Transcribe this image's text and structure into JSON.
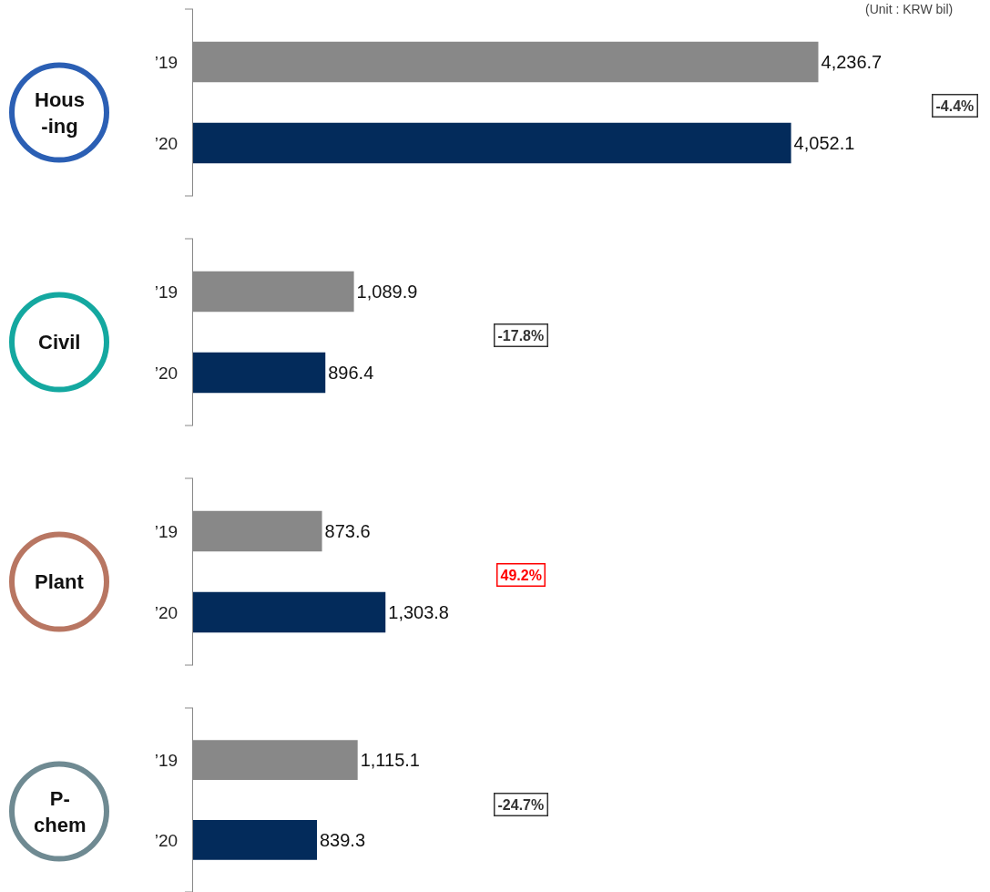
{
  "chart_data": [
    {
      "type": "bar",
      "orientation": "horizontal",
      "title": "Hous\n-ing",
      "categories": [
        "’19",
        "’20"
      ],
      "values": [
        4236.7,
        4052.1
      ],
      "colors": [
        "#888888",
        "#032b5b"
      ],
      "value_labels": [
        "4,236.7",
        "4,052.1"
      ],
      "xlim": [
        0,
        5400
      ],
      "tick_labels": "y",
      "annotations": [
        "(Unit : KRW bil)",
        "-4.4%"
      ]
    },
    {
      "type": "bar",
      "orientation": "horizontal",
      "title": "Civil",
      "categories": [
        "’19",
        "’20"
      ],
      "values": [
        1089.9,
        896.4
      ],
      "colors": [
        "#888888",
        "#032b5b"
      ],
      "value_labels": [
        "1,089.9",
        "896.4"
      ],
      "xlim": [
        0,
        5400
      ],
      "tick_labels": "y",
      "annotations": [
        "-17.8%"
      ]
    },
    {
      "type": "bar",
      "orientation": "horizontal",
      "title": "Plant",
      "categories": [
        "’19",
        "’20"
      ],
      "values": [
        873.6,
        1303.8
      ],
      "colors": [
        "#888888",
        "#032b5b"
      ],
      "value_labels": [
        "873.6",
        "1,303.8"
      ],
      "xlim": [
        0,
        5400
      ],
      "tick_labels": "y",
      "annotations": [
        "49.2%"
      ]
    },
    {
      "type": "bar",
      "orientation": "horizontal",
      "title": "P-\nchem",
      "categories": [
        "’19",
        "’20"
      ],
      "values": [
        1115.1,
        839.3
      ],
      "colors": [
        "#888888",
        "#032b5b"
      ],
      "value_labels": [
        "1,115.1",
        "839.3"
      ],
      "xlim": [
        0,
        5400
      ],
      "tick_labels": "y",
      "annotations": [
        "-24.7%"
      ]
    }
  ]
}
